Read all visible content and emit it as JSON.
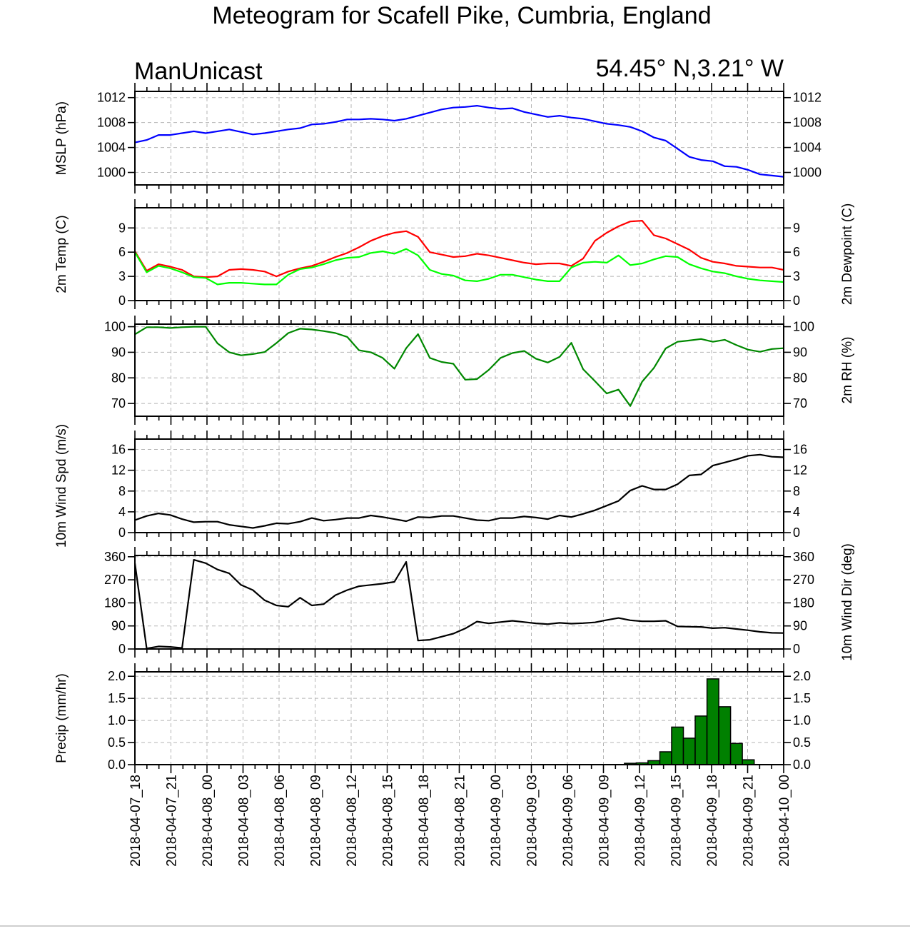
{
  "figure": {
    "title": "Meteogram for Scafell Pike, Cumbria, England",
    "model": "ManUnicast",
    "location": "54.45° N,3.21° W"
  },
  "colors": {
    "pressure": "#0000ff",
    "temperature": "#ff0000",
    "dewpoint": "#00ff00",
    "rh": "#008800",
    "wind": "#000000",
    "precip_fill": "#008000",
    "precip_edge": "#000000"
  },
  "x_tick_labels": [
    "2018-04-07_18",
    "2018-04-07_21",
    "2018-04-08_00",
    "2018-04-08_03",
    "2018-04-08_06",
    "2018-04-08_09",
    "2018-04-08_12",
    "2018-04-08_15",
    "2018-04-08_18",
    "2018-04-08_21",
    "2018-04-09_00",
    "2018-04-09_03",
    "2018-04-09_06",
    "2018-04-09_09",
    "2018-04-09_12",
    "2018-04-09_15",
    "2018-04-09_18",
    "2018-04-09_21",
    "2018-04-10_00"
  ],
  "chart_data": [
    {
      "type": "line",
      "key": "mslp",
      "ylabel": "MSLP (hPa)",
      "ylim": [
        998,
        1013
      ],
      "yticks": [
        1000,
        1004,
        1008,
        1012
      ],
      "right_ticks": true,
      "grid": true,
      "series": [
        {
          "color_key": "pressure",
          "values": [
            1004.8,
            1005.2,
            1006.0,
            1006.0,
            1006.3,
            1006.6,
            1006.3,
            1006.6,
            1006.9,
            1006.5,
            1006.1,
            1006.3,
            1006.6,
            1006.9,
            1007.1,
            1007.7,
            1007.8,
            1008.1,
            1008.5,
            1008.5,
            1008.6,
            1008.5,
            1008.3,
            1008.6,
            1009.1,
            1009.6,
            1010.1,
            1010.4,
            1010.5,
            1010.7,
            1010.4,
            1010.2,
            1010.3,
            1009.7,
            1009.3,
            1008.9,
            1009.1,
            1008.8,
            1008.6,
            1008.2,
            1007.8,
            1007.6,
            1007.3,
            1006.6,
            1005.6,
            1005.1,
            1003.8,
            1002.5,
            1002.0,
            1001.8,
            1001.0,
            1000.9,
            1000.4,
            999.7,
            999.5,
            999.3
          ]
        }
      ]
    },
    {
      "type": "line",
      "key": "temp",
      "ylabel": "2m Temp (C)",
      "ylabel_right": "2m Dewpoint (C)",
      "ylim": [
        0,
        11.5
      ],
      "yticks": [
        0,
        3,
        6,
        9
      ],
      "right_ticks": true,
      "grid": true,
      "series": [
        {
          "name": "",
          "color_key": "temperature",
          "values": [
            6.1,
            3.7,
            4.5,
            4.2,
            3.8,
            3.0,
            2.9,
            3.0,
            3.8,
            3.9,
            3.8,
            3.6,
            3.0,
            3.6,
            4.0,
            4.3,
            4.8,
            5.4,
            5.9,
            6.6,
            7.4,
            8.0,
            8.4,
            8.6,
            7.9,
            6.0,
            5.7,
            5.4,
            5.5,
            5.8,
            5.6,
            5.3,
            5.0,
            4.7,
            4.5,
            4.6,
            4.6,
            4.3,
            5.2,
            7.4,
            8.4,
            9.2,
            9.8,
            9.9,
            8.1,
            7.7,
            7.0,
            6.3,
            5.3,
            4.8,
            4.6,
            4.3,
            4.2,
            4.1,
            4.1,
            3.8
          ]
        },
        {
          "name": "",
          "color_key": "dewpoint",
          "values": [
            6.0,
            3.5,
            4.3,
            4.0,
            3.5,
            2.9,
            2.8,
            2.0,
            2.2,
            2.2,
            2.1,
            2.0,
            2.0,
            3.2,
            3.9,
            4.1,
            4.5,
            5.0,
            5.3,
            5.4,
            5.9,
            6.1,
            5.8,
            6.4,
            5.6,
            3.8,
            3.3,
            3.1,
            2.5,
            2.4,
            2.7,
            3.2,
            3.2,
            2.9,
            2.6,
            2.4,
            2.4,
            4.1,
            4.7,
            4.8,
            4.7,
            5.6,
            4.4,
            4.6,
            5.1,
            5.5,
            5.4,
            4.5,
            4.0,
            3.6,
            3.4,
            3.0,
            2.7,
            2.5,
            2.4,
            2.3
          ]
        }
      ]
    },
    {
      "type": "line",
      "key": "rh",
      "ylabel_right": "2m RH (%)",
      "ylim": [
        65,
        101
      ],
      "yticks": [
        70,
        80,
        90,
        100
      ],
      "right_ticks": true,
      "grid": true,
      "series": [
        {
          "color_key": "rh",
          "values": [
            97.0,
            99.8,
            99.8,
            99.5,
            99.8,
            100,
            100,
            93.5,
            90.0,
            88.8,
            89.3,
            90.1,
            93.6,
            97.5,
            99.2,
            98.9,
            98.3,
            97.5,
            96.0,
            90.8,
            90.0,
            87.8,
            83.6,
            91.6,
            97.1,
            87.8,
            86.2,
            85.5,
            79.3,
            79.5,
            83.1,
            87.8,
            89.7,
            90.5,
            87.5,
            86.0,
            88.2,
            93.7,
            83.4,
            78.7,
            73.9,
            75.4,
            69.0,
            78.5,
            83.9,
            91.5,
            94.1,
            94.6,
            95.2,
            94.1,
            94.9,
            92.8,
            91.0,
            90.2,
            91.3,
            91.6
          ]
        }
      ]
    },
    {
      "type": "line",
      "key": "wspd",
      "ylabel": "10m Wind Spd (m/s)",
      "ylim": [
        0,
        18
      ],
      "yticks": [
        0,
        4,
        8,
        12,
        16
      ],
      "right_ticks": true,
      "grid": true,
      "series": [
        {
          "color_key": "wind",
          "values": [
            2.4,
            3.2,
            3.7,
            3.4,
            2.6,
            2.0,
            2.1,
            2.1,
            1.5,
            1.2,
            0.9,
            1.3,
            1.8,
            1.7,
            2.1,
            2.8,
            2.3,
            2.5,
            2.8,
            2.8,
            3.3,
            3.0,
            2.6,
            2.2,
            3.0,
            2.9,
            3.2,
            3.2,
            2.8,
            2.4,
            2.3,
            2.8,
            2.8,
            3.1,
            2.9,
            2.6,
            3.3,
            3.0,
            3.6,
            4.3,
            5.2,
            6.1,
            8.1,
            9.0,
            8.3,
            8.3,
            9.3,
            11.0,
            11.2,
            12.9,
            13.5,
            14.1,
            14.8,
            15.0,
            14.6,
            14.5
          ]
        }
      ]
    },
    {
      "type": "line",
      "key": "wdir",
      "ylabel_right": "10m Wind Dir (deg)",
      "ylim": [
        0,
        365
      ],
      "yticks": [
        0,
        90,
        180,
        270,
        360
      ],
      "right_ticks": true,
      "grid": true,
      "series": [
        {
          "color_key": "wind",
          "values": [
            335,
            2,
            10,
            8,
            4,
            348,
            335,
            310,
            295,
            250,
            230,
            190,
            170,
            165,
            200,
            170,
            175,
            210,
            230,
            245,
            250,
            255,
            262,
            340,
            33,
            36,
            48,
            60,
            80,
            107,
            100,
            105,
            110,
            105,
            100,
            97,
            102,
            99,
            101,
            104,
            113,
            121,
            112,
            108,
            108,
            110,
            88,
            87,
            86,
            81,
            83,
            78,
            73,
            67,
            63,
            62
          ]
        }
      ]
    },
    {
      "type": "bar",
      "key": "precip",
      "ylabel": "Precip (mm/hr)",
      "ylim": [
        0,
        2.1
      ],
      "yticks": [
        0.0,
        0.5,
        1.0,
        1.5,
        2.0
      ],
      "ytick_labels": [
        "0.0",
        "0.5",
        "1.0",
        "1.5",
        "2.0"
      ],
      "right_ticks": true,
      "grid": true,
      "series": [
        {
          "color_key": "precip_fill",
          "values": [
            0,
            0,
            0,
            0,
            0,
            0,
            0,
            0,
            0,
            0,
            0,
            0,
            0,
            0,
            0,
            0,
            0,
            0,
            0,
            0,
            0,
            0,
            0,
            0,
            0,
            0,
            0,
            0,
            0,
            0,
            0,
            0,
            0,
            0,
            0,
            0,
            0,
            0,
            0,
            0,
            0,
            0,
            0.03,
            0.04,
            0.09,
            0.29,
            0.85,
            0.6,
            1.1,
            1.94,
            1.31,
            0.48,
            0.11,
            0,
            0,
            0
          ]
        }
      ]
    }
  ]
}
